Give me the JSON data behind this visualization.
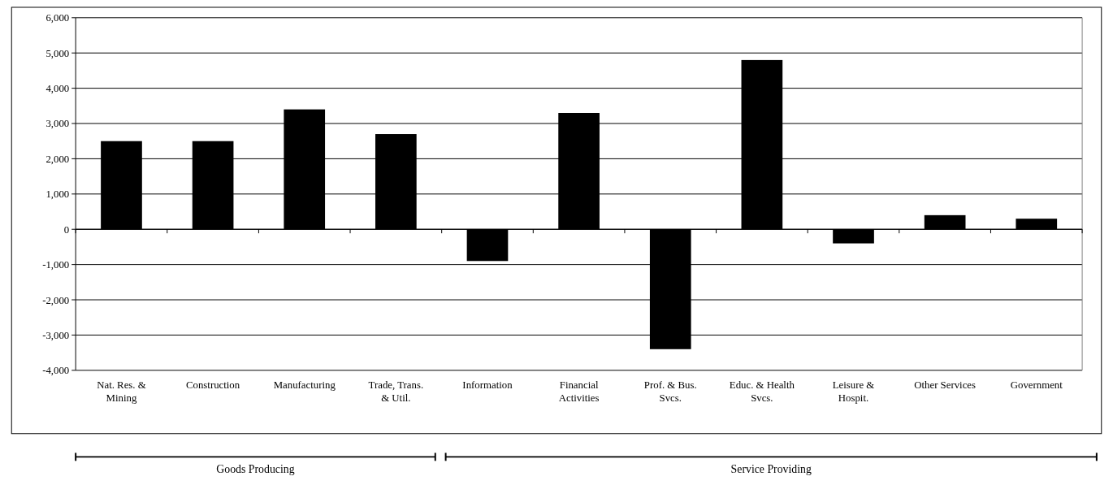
{
  "chart_data": {
    "type": "bar",
    "categories": [
      "Nat. Res. & Mining",
      "Construction",
      "Manufacturing",
      "Trade, Trans. & Util.",
      "Information",
      "Financial Activities",
      "Prof. & Bus. Svcs.",
      "Educ. & Health Svcs.",
      "Leisure & Hospit.",
      "Other Services",
      "Government"
    ],
    "values": [
      2500,
      2500,
      3400,
      2700,
      -900,
      3300,
      -3400,
      4800,
      -400,
      400,
      300
    ],
    "color": "#000000",
    "ylim": [
      -4000,
      6000
    ],
    "yticks": [
      {
        "value": -4000,
        "label": "-4,000"
      },
      {
        "value": -3000,
        "label": "-3,000"
      },
      {
        "value": -2000,
        "label": "-2,000"
      },
      {
        "value": -1000,
        "label": "-1,000"
      },
      0,
      {
        "value": 1000,
        "label": "1,000"
      },
      {
        "value": 2000,
        "label": "2,000"
      },
      {
        "value": 3000,
        "label": "3,000"
      },
      {
        "value": 4000,
        "label": "4,000"
      },
      {
        "value": 5000,
        "label": "5,000"
      },
      {
        "value": 6000,
        "label": "6,000"
      }
    ],
    "grid": "y",
    "annotations": [
      "Goods Producing",
      "Service Providing"
    ]
  }
}
